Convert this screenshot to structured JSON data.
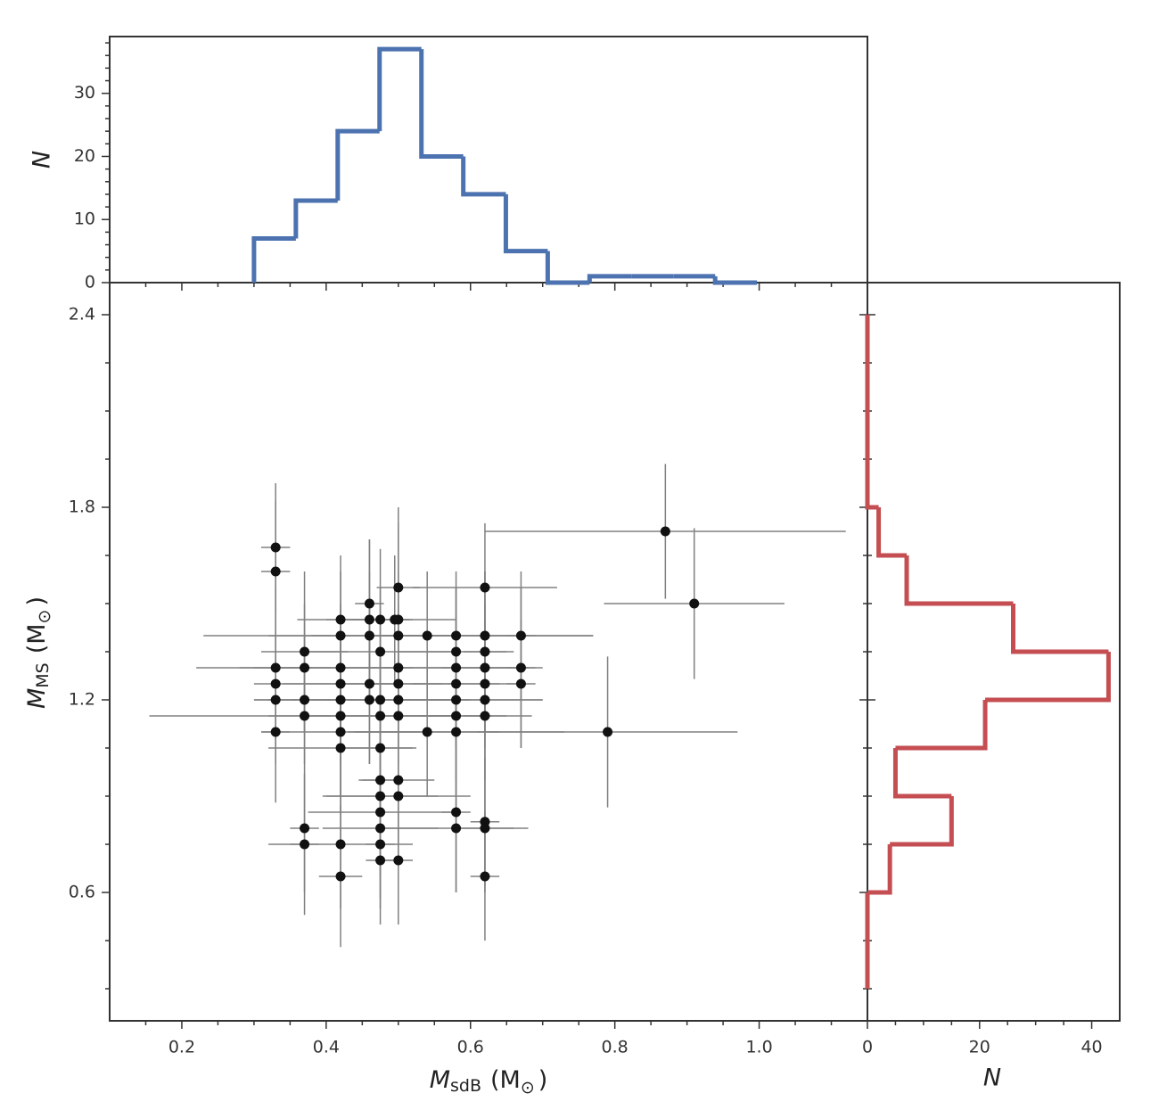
{
  "chart_data": [
    {
      "type": "scatter",
      "xlabel": {
        "symbol": "M",
        "subscript": "sdB",
        "unit": "(M",
        "unit_subscript": "⊙",
        "close": ")"
      },
      "ylabel": {
        "symbol": "M",
        "subscript": "MS",
        "unit": "(M",
        "unit_subscript": "⊙",
        "close": ")"
      },
      "xlim": [
        0.1,
        1.15
      ],
      "ylim": [
        0.2,
        2.5
      ],
      "xticks": [
        0.2,
        0.4,
        0.6,
        0.8,
        {
          "value": 1,
          "label": "1.0"
        }
      ],
      "xticks_minor": [
        0.15,
        0.25,
        0.3,
        0.35,
        0.45,
        0.5,
        0.55,
        0.65,
        0.7,
        0.75,
        0.85,
        0.9,
        0.95,
        1.05,
        1.1
      ],
      "yticks": [
        0.6,
        1.2,
        1.8,
        2.4
      ],
      "yticks_minor": [
        0.3,
        0.45,
        0.75,
        0.9,
        1.05,
        1.35,
        1.5,
        1.65,
        1.95,
        2.1,
        2.25
      ],
      "color": "#111111",
      "error_color": "#808080",
      "x": [
        0.33,
        0.33,
        0.33,
        0.33,
        0.33,
        0.33,
        0.37,
        0.37,
        0.37,
        0.37,
        0.37,
        0.37,
        0.42,
        0.42,
        0.42,
        0.42,
        0.42,
        0.42,
        0.42,
        0.42,
        0.42,
        0.42,
        0.46,
        0.46,
        0.46,
        0.46,
        0.46,
        0.475,
        0.475,
        0.475,
        0.475,
        0.475,
        0.475,
        0.475,
        0.475,
        0.475,
        0.475,
        0.475,
        0.495,
        0.5,
        0.5,
        0.5,
        0.5,
        0.5,
        0.5,
        0.5,
        0.5,
        0.5,
        0.5,
        0.54,
        0.54,
        0.58,
        0.58,
        0.58,
        0.58,
        0.58,
        0.58,
        0.58,
        0.58,
        0.58,
        0.62,
        0.62,
        0.62,
        0.62,
        0.62,
        0.62,
        0.62,
        0.62,
        0.62,
        0.62,
        0.67,
        0.67,
        0.67,
        0.79,
        0.87,
        0.91
      ],
      "values": [
        1.675,
        1.6,
        1.3,
        1.25,
        1.2,
        1.1,
        1.35,
        1.3,
        1.2,
        1.15,
        0.8,
        0.75,
        1.45,
        1.4,
        1.3,
        1.25,
        1.2,
        1.15,
        1.1,
        1.05,
        0.75,
        0.65,
        1.5,
        1.45,
        1.4,
        1.25,
        1.2,
        1.45,
        1.35,
        1.2,
        1.15,
        1.05,
        0.95,
        0.9,
        0.85,
        0.8,
        0.75,
        0.7,
        1.45,
        1.55,
        1.45,
        1.4,
        1.3,
        1.25,
        1.2,
        1.15,
        0.95,
        0.9,
        0.7,
        1.4,
        1.1,
        1.4,
        1.35,
        1.3,
        1.25,
        1.2,
        1.15,
        1.1,
        0.85,
        0.8,
        1.55,
        1.4,
        1.35,
        1.3,
        1.25,
        1.2,
        1.15,
        0.82,
        0.8,
        0.65,
        1.4,
        1.3,
        1.25,
        1.1,
        1.725,
        1.5
      ],
      "xerr": [
        0.02,
        0.02,
        0.05,
        0.03,
        0.03,
        0.02,
        0.06,
        0.15,
        0.07,
        0.05,
        0.02,
        0.02,
        0.06,
        0.1,
        0.09,
        0.08,
        0.1,
        0.265,
        0.11,
        0.1,
        0.1,
        0.03,
        0.02,
        0.06,
        0.08,
        0.1,
        0.08,
        0.04,
        0.1,
        0.12,
        0.1,
        0.05,
        0.03,
        0.08,
        0.1,
        0.08,
        0.02,
        0.02,
        0.02,
        0.03,
        0.08,
        0.27,
        0.2,
        0.09,
        0.1,
        0.08,
        0.05,
        0.1,
        0.02,
        0.04,
        0.1,
        0.1,
        0.08,
        0.1,
        0.06,
        0.12,
        0.05,
        0.15,
        0.02,
        0.1,
        0.1,
        0.15,
        0.03,
        0.06,
        0.05,
        0.08,
        0.03,
        0.02,
        0.04,
        0.02,
        0.02,
        0.02,
        0.02,
        0.18,
        0.25,
        0.125
      ],
      "yerr": [
        0.2,
        0.22,
        0.25,
        0.15,
        0.2,
        0.22,
        0.25,
        0.2,
        0.2,
        0.15,
        0.2,
        0.22,
        0.2,
        0.2,
        0.2,
        0.15,
        0.2,
        0.2,
        0.2,
        0.2,
        0.2,
        0.22,
        0.2,
        0.25,
        0.2,
        0.25,
        0.2,
        0.22,
        0.2,
        0.2,
        0.2,
        0.2,
        0.2,
        0.2,
        0.2,
        0.22,
        0.2,
        0.2,
        0.2,
        0.25,
        0.3,
        0.2,
        0.2,
        0.2,
        0.2,
        0.2,
        0.2,
        0.2,
        0.2,
        0.2,
        0.2,
        0.2,
        0.2,
        0.25,
        0.2,
        0.2,
        0.2,
        0.2,
        0.25,
        0.2,
        0.2,
        0.2,
        0.25,
        0.2,
        0.2,
        0.2,
        0.2,
        0.2,
        0.2,
        0.2,
        0.2,
        0.25,
        0.2,
        0.235,
        0.21,
        0.235
      ]
    },
    {
      "type": "histogram",
      "ylabel": "N",
      "color": "#4c72b0",
      "xlim": [
        0.1,
        1.15
      ],
      "ylim": [
        0,
        39
      ],
      "yticks": [
        0,
        10,
        20,
        30
      ],
      "yticks_minor": [
        2,
        4,
        6,
        8,
        12,
        14,
        16,
        18,
        22,
        24,
        26,
        28,
        32,
        34,
        36,
        38
      ],
      "bins": [
        0.3,
        0.358,
        0.416,
        0.474,
        0.532,
        0.59,
        0.649,
        0.707,
        0.765,
        0.823,
        0.881,
        0.939,
        0.997
      ],
      "values": [
        7,
        13,
        24,
        37,
        20,
        14,
        5,
        0,
        1,
        1,
        1,
        0
      ]
    },
    {
      "type": "histogram",
      "orientation": "horizontal",
      "xlabel": "N",
      "color": "#c44e52",
      "xlim": [
        0,
        45
      ],
      "ylim": [
        0.2,
        2.5
      ],
      "xticks": [
        0,
        20,
        40
      ],
      "xticks_minor": [
        5,
        10,
        15,
        25,
        30,
        35
      ],
      "bins": [
        0.3,
        0.45,
        0.6,
        0.75,
        0.9,
        1.05,
        1.2,
        1.35,
        1.5,
        1.65,
        1.8,
        1.95,
        2.1,
        2.25,
        2.4
      ],
      "values": [
        0,
        0,
        4,
        15,
        5,
        21,
        43,
        26,
        7,
        2,
        0,
        0,
        0,
        0
      ]
    }
  ]
}
